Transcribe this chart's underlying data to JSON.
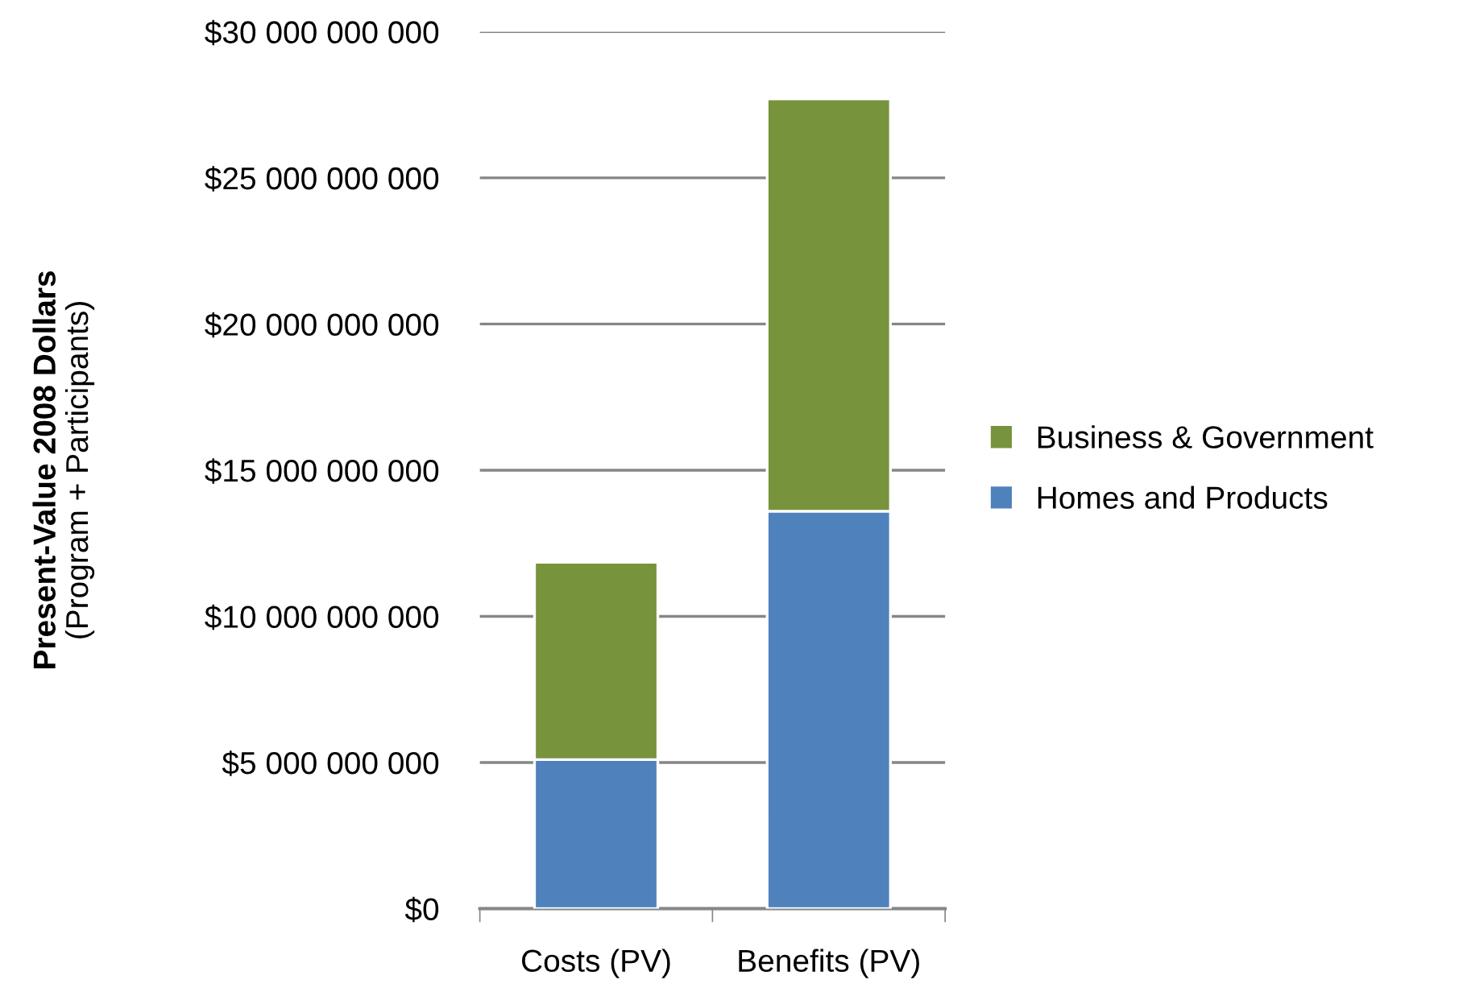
{
  "chart_data": {
    "type": "bar",
    "stacked": true,
    "ylabel": "Present-Value 2008 Dollars\n(Program + Participants)",
    "categories": [
      "Costs (PV)",
      "Benefits (PV)"
    ],
    "series": [
      {
        "name": "Homes and Products",
        "color": "#4f81bd",
        "values": [
          5100000000,
          13600000000
        ]
      },
      {
        "name": "Business & Government",
        "color": "#77933c",
        "values": [
          6750000000,
          14100000000
        ]
      }
    ],
    "ylim": [
      0,
      30000000000
    ],
    "yticks": [
      {
        "value": 0,
        "label": "$0"
      },
      {
        "value": 5000000000,
        "label": "$5 000 000 000"
      },
      {
        "value": 10000000000,
        "label": "$10 000 000 000"
      },
      {
        "value": 15000000000,
        "label": "$15 000 000 000"
      },
      {
        "value": 20000000000,
        "label": "$20 000 000 000"
      },
      {
        "value": 25000000000,
        "label": "$25 000 000 000"
      },
      {
        "value": 30000000000,
        "label": "$30 000 000 000"
      }
    ],
    "grid": "y",
    "legend": "right"
  }
}
